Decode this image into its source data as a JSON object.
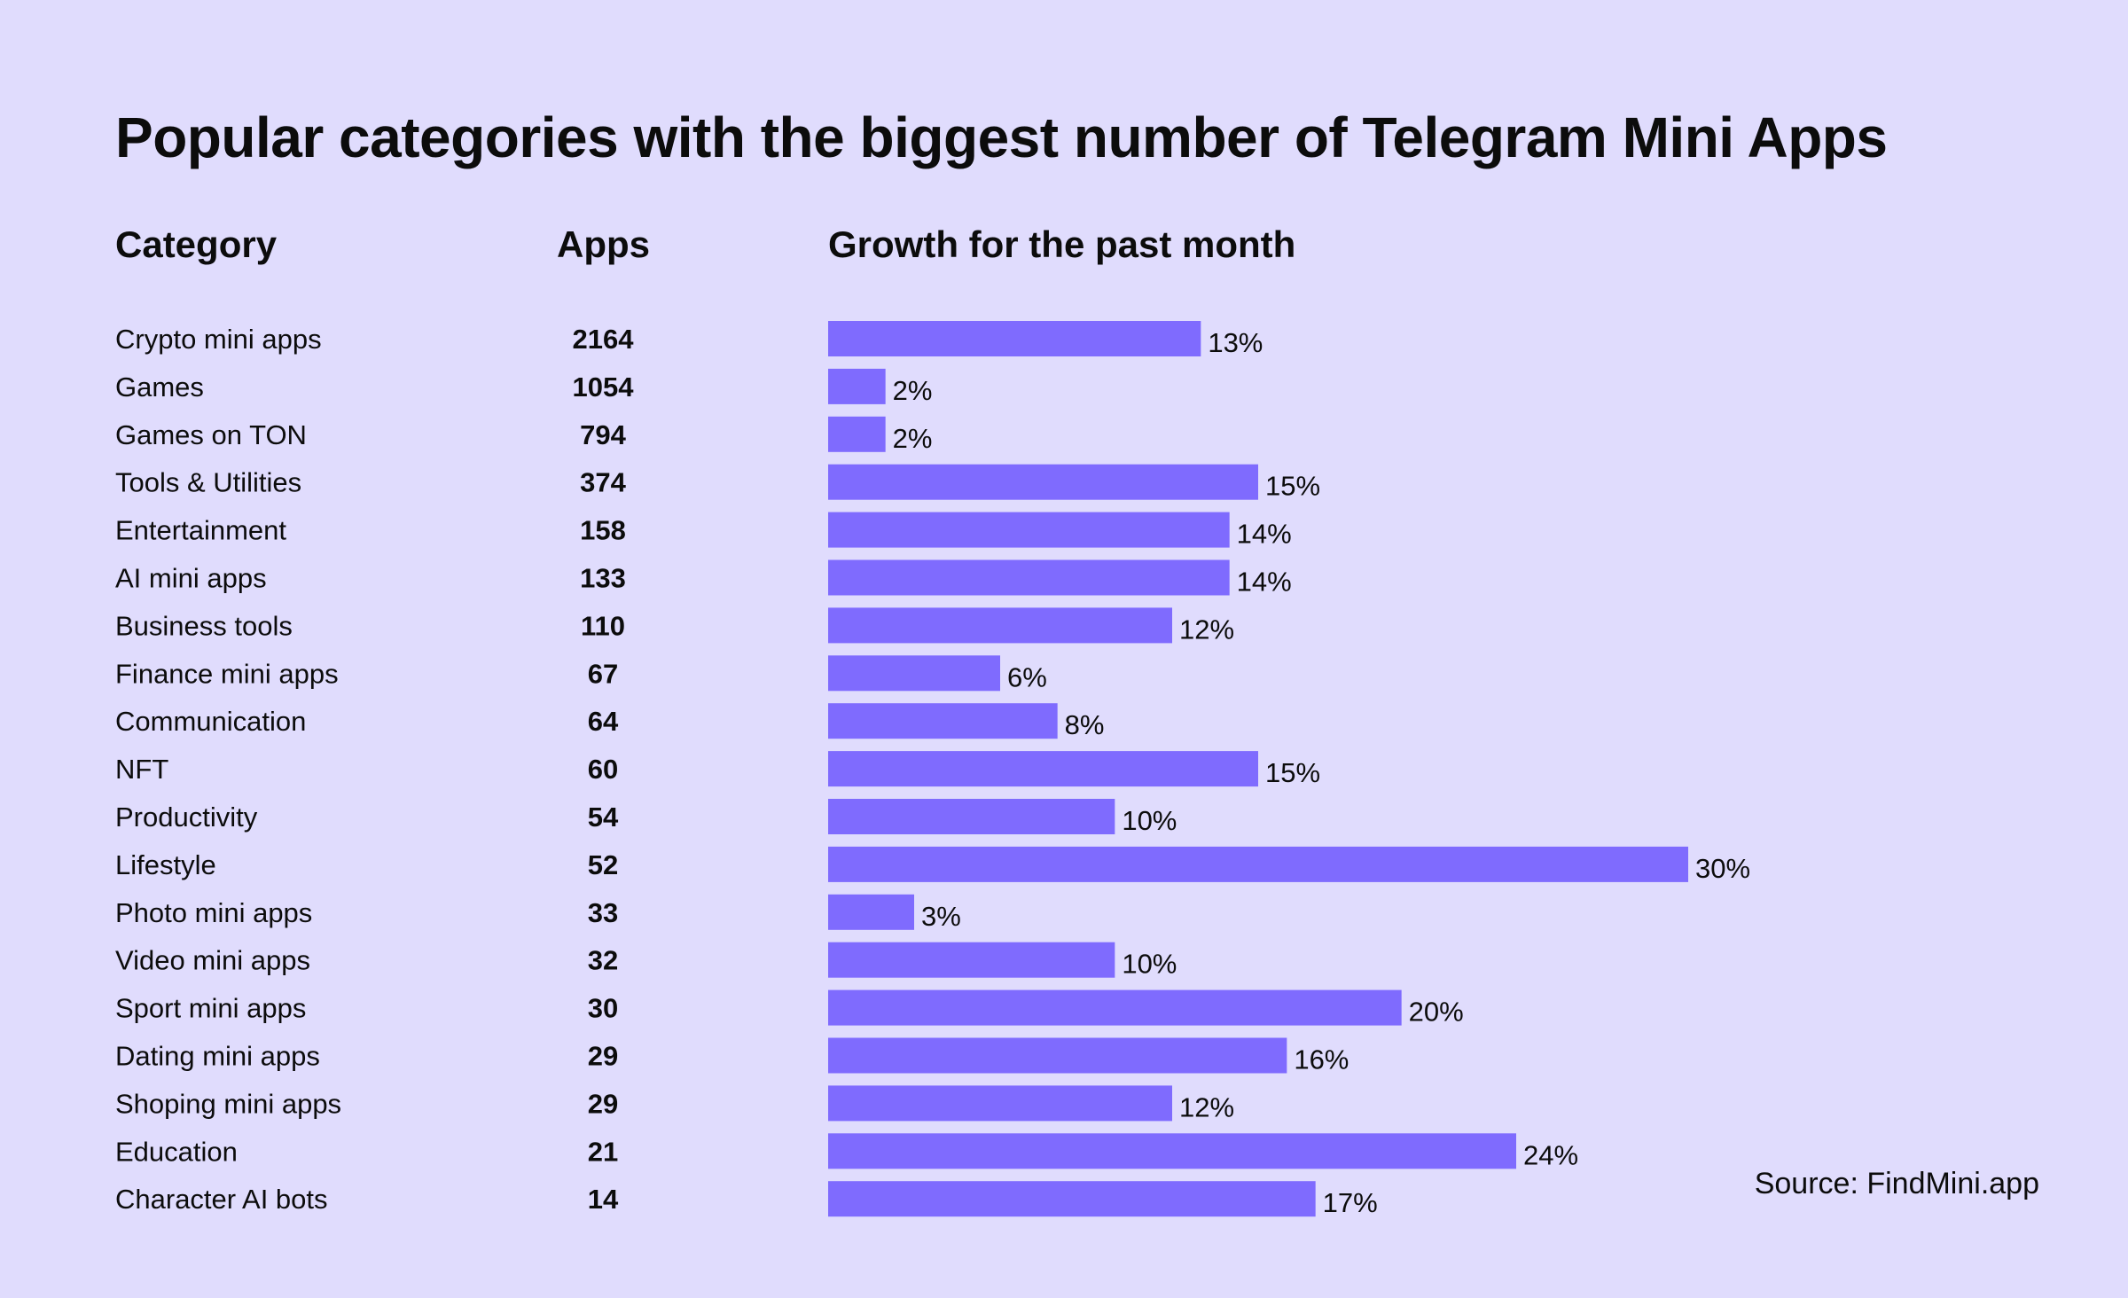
{
  "title": "Popular categories with the biggest number of Telegram Mini Apps",
  "headers": {
    "category": "Category",
    "apps": "Apps",
    "growth": "Growth for the past month"
  },
  "source": "Source: FindMini.app",
  "colors": {
    "background": "#e0dcfd",
    "bar": "#7f6bfe",
    "text": "#0c0c0c"
  },
  "chart_data": {
    "type": "bar",
    "orientation": "horizontal",
    "title": "Popular categories with the biggest number of Telegram Mini Apps",
    "categories": [
      "Crypto mini apps",
      "Games",
      "Games on TON",
      "Tools & Utilities",
      "Entertainment",
      "AI mini apps",
      "Business tools",
      "Finance mini apps",
      "Communication",
      "NFT",
      "Productivity",
      "Lifestyle",
      "Photo mini apps",
      "Video mini apps",
      "Sport mini apps",
      "Dating mini apps",
      "Shoping mini apps",
      "Education",
      "Character AI bots"
    ],
    "apps": [
      2164,
      1054,
      794,
      374,
      158,
      133,
      110,
      67,
      64,
      60,
      54,
      52,
      33,
      32,
      30,
      29,
      29,
      21,
      14
    ],
    "series": [
      {
        "values": [
          13,
          2,
          2,
          15,
          14,
          14,
          12,
          6,
          8,
          15,
          10,
          30,
          3,
          10,
          20,
          16,
          12,
          24,
          17
        ]
      }
    ],
    "value_suffix": "%",
    "xlim": [
      0,
      30
    ],
    "grid": false,
    "legend": "none"
  }
}
